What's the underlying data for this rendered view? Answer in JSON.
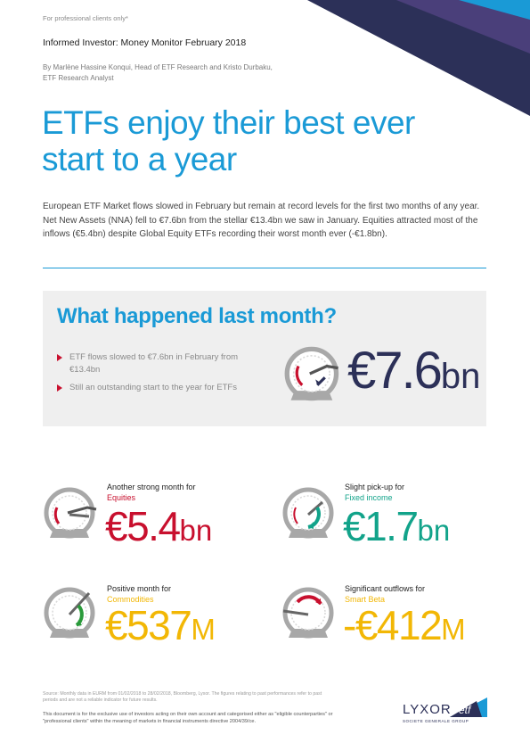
{
  "header": {
    "disclaimer": "For professional clients only*",
    "report_title": "Informed Investor: Money Monitor February 2018",
    "authors_line1": "By Marlène Hassine Konqui, Head of ETF Research and Kristo Durbaku,",
    "authors_line2": "ETF Research Analyst"
  },
  "headline": "ETFs enjoy their best ever start to a year",
  "intro": "European ETF Market flows slowed in February but remain at record levels for the first two months of any year. Net New Assets (NNA) fell to €7.6bn from the stellar €13.4bn we saw in January. Equities attracted most of the inflows (€5.4bn) despite Global Equity ETFs recording their worst month ever (-€1.8bn).",
  "summary": {
    "title": "What happened last month?",
    "bullets": [
      "ETF flows slowed to €7.6bn in February from €13.4bn",
      "Still an outstanding start to the year for ETFs"
    ],
    "total_value": "€7.6",
    "total_unit": "bn"
  },
  "cards": [
    {
      "label": "Another strong month for",
      "asset": "Equities",
      "value": "€5.4",
      "unit": "bn",
      "color": "#c8102e",
      "gauge_color": "#c8102e"
    },
    {
      "label": "Slight pick-up for",
      "asset": "Fixed income",
      "value": "€1.7",
      "unit": "bn",
      "color": "#12a38a",
      "gauge_color": "#12a38a"
    },
    {
      "label": "Positive month for",
      "asset": "Commodities",
      "value": "€537",
      "unit": "M",
      "color": "#f2b705",
      "gauge_color": "#2a9a3a"
    },
    {
      "label": "Significant outflows for",
      "asset": "Smart Beta",
      "value": "-€412",
      "unit": "M",
      "color": "#f2b705",
      "gauge_color": "#c8102e"
    }
  ],
  "footer": {
    "source": "Source: Monthly data in EURM from 01/02/2018 to 28/02/2018, Bloomberg, Lyxor. The figures relating to past performances refer to past periods and are not a reliable indicator for future results.",
    "legal": "This document is for the exclusive use of investors acting on their own account and categorised either as \"eligible counterparties\" or \"professional clients\" within the meaning of markets in financial instruments directive 2004/39/ce.",
    "logo_text": "LYXOR",
    "logo_etf": "etf",
    "logo_sub": "SOCIETE GENERALE GROUP"
  }
}
